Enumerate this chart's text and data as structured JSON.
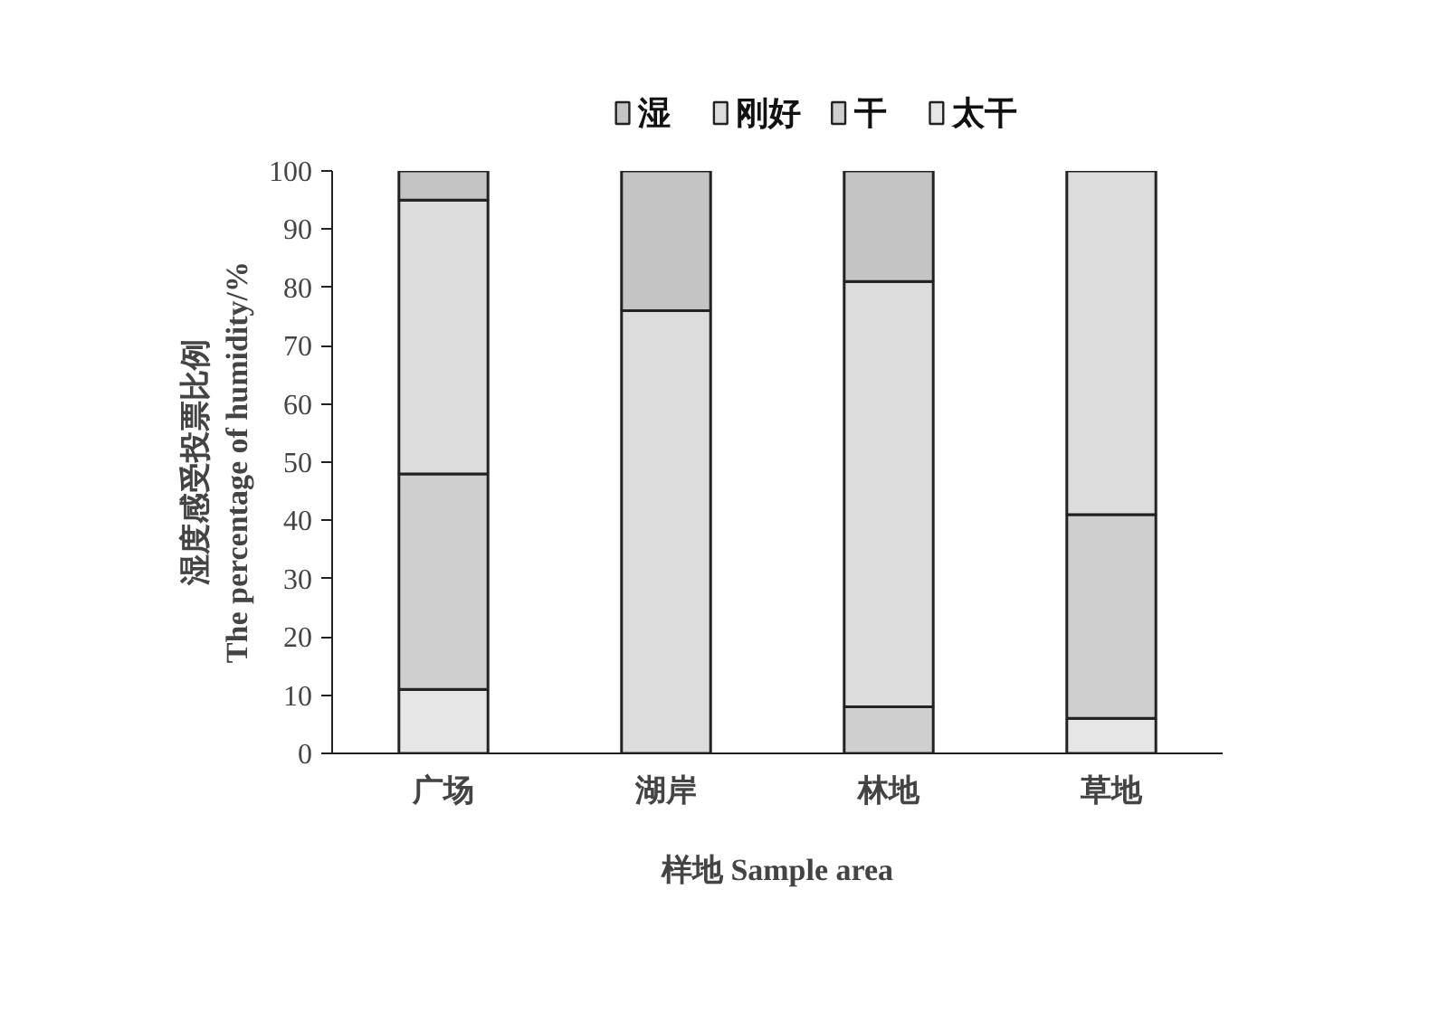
{
  "chart_data": {
    "type": "bar",
    "stacked": true,
    "xlabel": "样地 Sample area",
    "ylabel": "湿度感受投票比例\nThe percentage of humidity/%",
    "categories": [
      "广场",
      "湖岸",
      "林地",
      "草地"
    ],
    "series": [
      {
        "name": "太干",
        "color": "#e6e6e6",
        "values": [
          11,
          0,
          0,
          6
        ]
      },
      {
        "name": "干",
        "color": "#cfcfcf",
        "values": [
          37,
          0,
          8,
          35
        ]
      },
      {
        "name": "刚好",
        "color": "#dcdcdc",
        "values": [
          47,
          76,
          73,
          59
        ]
      },
      {
        "name": "湿",
        "color": "#c4c4c4",
        "values": [
          5,
          24,
          19,
          0
        ]
      }
    ],
    "ylim": [
      0,
      100
    ],
    "yticks": [
      0,
      10,
      20,
      30,
      40,
      50,
      60,
      70,
      80,
      90,
      100
    ],
    "grid": false,
    "legend": "top"
  }
}
